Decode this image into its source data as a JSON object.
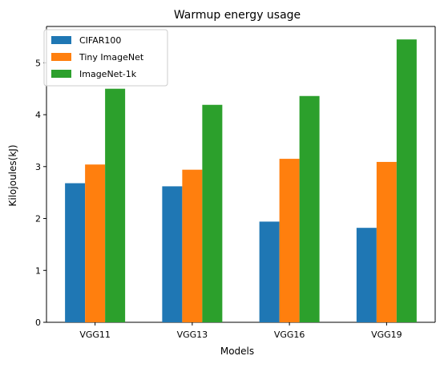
{
  "chart_data": {
    "type": "bar",
    "title": "Warmup energy usage",
    "xlabel": "Models",
    "ylabel": "Kilojoules(kJ)",
    "categories": [
      "VGG11",
      "VGG13",
      "VGG16",
      "VGG19"
    ],
    "ylim": [
      0,
      5.7
    ],
    "yticks": [
      "0",
      "1",
      "2",
      "3",
      "4",
      "5"
    ],
    "series": [
      {
        "name": "CIFAR100",
        "color": "#1f77b4",
        "values": [
          2.68,
          2.62,
          1.94,
          1.82
        ]
      },
      {
        "name": "Tiny ImageNet",
        "color": "#ff7f0e",
        "values": [
          3.04,
          2.94,
          3.15,
          3.09
        ]
      },
      {
        "name": "ImageNet-1k",
        "color": "#2ca02c",
        "values": [
          4.5,
          4.19,
          4.36,
          5.45
        ]
      }
    ],
    "legend_position": "top-left",
    "grid": false
  }
}
